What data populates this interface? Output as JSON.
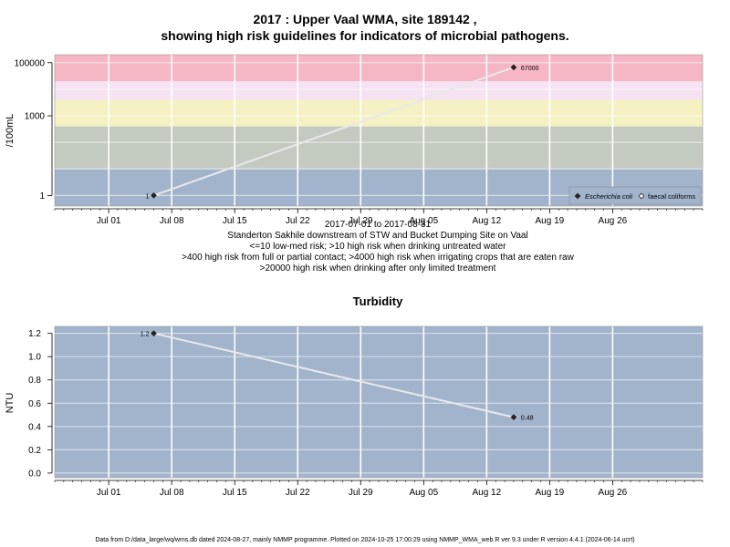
{
  "title": {
    "line1": "2017 : Upper Vaal WMA, site 189142 ,",
    "line2": "showing high risk guidelines for indicators of microbial pathogens."
  },
  "chart_data": [
    {
      "type": "line",
      "title": "",
      "ylabel": "/100mL",
      "y_scale": "log",
      "ylim": [
        0.4,
        200000
      ],
      "xlim": [
        "2017-06-25",
        "2017-09-05"
      ],
      "x_ticks": [
        "Jul 01",
        "Jul 08",
        "Jul 15",
        "Jul 22",
        "Jul 29",
        "Aug 05",
        "Aug 12",
        "Aug 19",
        "Aug 26"
      ],
      "y_ticks": [
        "1",
        "1000",
        "100000"
      ],
      "risk_bands": [
        {
          "from": 0.4,
          "to": 10,
          "color": "#a2b3cc"
        },
        {
          "from": 10,
          "to": 400,
          "color": "#c3cbc0"
        },
        {
          "from": 400,
          "to": 4000,
          "color": "#f5f1c3"
        },
        {
          "from": 4000,
          "to": 20000,
          "color": "#f5e2f2"
        },
        {
          "from": 20000,
          "to": 200000,
          "color": "#f6b6c4"
        }
      ],
      "series": [
        {
          "name": "Escherichia coli",
          "marker": "filled-diamond",
          "points": [
            {
              "x": "2017-07-06",
              "y": 1,
              "label": "1"
            },
            {
              "x": "2017-08-15",
              "y": 67000,
              "label": "67000"
            }
          ]
        },
        {
          "name": "faecal coliforms",
          "marker": "open-diamond",
          "points": []
        }
      ],
      "legend_position": "bottom-right"
    },
    {
      "type": "line",
      "title": "Turbidity",
      "ylabel": "NTU",
      "ylim": [
        -0.04,
        1.26
      ],
      "xlim": [
        "2017-06-25",
        "2017-09-05"
      ],
      "x_ticks": [
        "Jul 01",
        "Jul 08",
        "Jul 15",
        "Jul 22",
        "Jul 29",
        "Aug 05",
        "Aug 12",
        "Aug 19",
        "Aug 26"
      ],
      "y_ticks": [
        "0.0",
        "0.2",
        "0.4",
        "0.6",
        "0.8",
        "1.0",
        "1.2"
      ],
      "background": "#a2b3cc",
      "series": [
        {
          "marker": "filled-diamond",
          "points": [
            {
              "x": "2017-07-06",
              "y": 1.2,
              "label": "1.2"
            },
            {
              "x": "2017-08-15",
              "y": 0.48,
              "label": "0.48"
            }
          ]
        }
      ]
    }
  ],
  "subtitle": {
    "date_range": "2017-07-01 to 2017-08-31",
    "site": "Standerton Sakhile downstream of STW and Bucket Dumping Site on Vaal",
    "risk1": "<=10 low-med risk; >10 high risk when drinking untreated water",
    "risk2": ">400 high risk from full or partial contact; >4000 high risk when irrigating crops that are eaten raw",
    "risk3": ">20000 high risk when drinking after only limited treatment"
  },
  "footer": "Data from D:/data_large/wq/wms.db dated 2024-08-27, mainly NMMP programme. Plotted on 2024-10-25 17:00:29 using NMMP_WMA_web.R ver 9.3 under R version 4.4.1 (2024-06-14 ucrt)"
}
